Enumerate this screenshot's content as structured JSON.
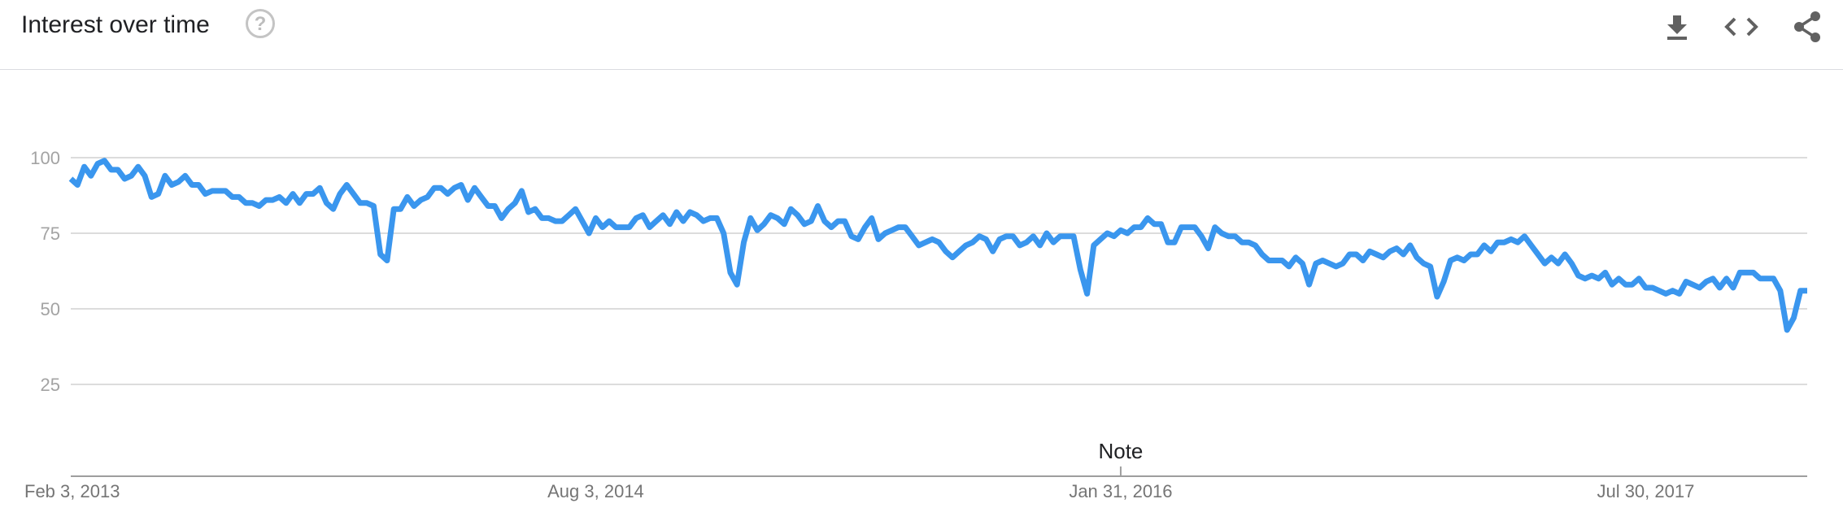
{
  "header": {
    "title": "Interest over time",
    "help_glyph": "?"
  },
  "toolbar": [
    {
      "name": "download-icon",
      "label": "download"
    },
    {
      "name": "embed-icon",
      "label": "embed"
    },
    {
      "name": "share-icon",
      "label": "share"
    }
  ],
  "colors": {
    "line": "#3a96ee",
    "grid": "#dcdcdc",
    "axis": "#9e9e9e"
  },
  "chart_data": {
    "type": "line",
    "title": "Interest over time",
    "xlabel": "",
    "ylabel": "",
    "ylim": [
      0,
      100
    ],
    "xlim": [
      "2013-02-03",
      "2018-03-11"
    ],
    "yticks": [
      25,
      50,
      75,
      100
    ],
    "xtick_labels": [
      {
        "date": "2013-02-03",
        "label": "Feb 3, 2013"
      },
      {
        "date": "2014-08-03",
        "label": "Aug 3, 2014"
      },
      {
        "date": "2016-01-31",
        "label": "Jan 31, 2016"
      },
      {
        "date": "2017-07-30",
        "label": "Jul 30, 2017"
      }
    ],
    "annotations": [
      {
        "date": "2016-01-31",
        "text": "Note"
      }
    ],
    "grid": true,
    "legend": "none",
    "start_date": "2013-02-03",
    "interval_days": 7,
    "series": [
      {
        "values": [
          93,
          91,
          97,
          94,
          98,
          99,
          96,
          96,
          93,
          94,
          97,
          94,
          87,
          88,
          94,
          91,
          92,
          94,
          91,
          91,
          88,
          89,
          89,
          89,
          87,
          87,
          85,
          85,
          84,
          86,
          86,
          87,
          85,
          88,
          85,
          88,
          88,
          90,
          85,
          83,
          88,
          91,
          88,
          85,
          85,
          84,
          68,
          66,
          83,
          83,
          87,
          84,
          86,
          87,
          90,
          90,
          88,
          90,
          91,
          86,
          90,
          87,
          84,
          84,
          80,
          83,
          85,
          89,
          82,
          83,
          80,
          80,
          79,
          79,
          81,
          83,
          79,
          75,
          80,
          77,
          79,
          77,
          77,
          77,
          80,
          81,
          77,
          79,
          81,
          78,
          82,
          79,
          82,
          81,
          79,
          80,
          80,
          75,
          62,
          58,
          72,
          80,
          76,
          78,
          81,
          80,
          78,
          83,
          81,
          78,
          79,
          84,
          79,
          77,
          79,
          79,
          74,
          73,
          77,
          80,
          73,
          75,
          76,
          77,
          77,
          74,
          71,
          72,
          73,
          72,
          69,
          67,
          69,
          71,
          72,
          74,
          73,
          69,
          73,
          74,
          74,
          71,
          72,
          74,
          71,
          75,
          72,
          74,
          74,
          74,
          63,
          55,
          71,
          73,
          75,
          74,
          76,
          75,
          77,
          77,
          80,
          78,
          78,
          72,
          72,
          77,
          77,
          77,
          74,
          70,
          77,
          75,
          74,
          74,
          72,
          72,
          71,
          68,
          66,
          66,
          66,
          64,
          67,
          65,
          58,
          65,
          66,
          65,
          64,
          65,
          68,
          68,
          66,
          69,
          68,
          67,
          69,
          70,
          68,
          71,
          67,
          65,
          64,
          54,
          59,
          66,
          67,
          66,
          68,
          68,
          71,
          69,
          72,
          72,
          73,
          72,
          74,
          71,
          68,
          65,
          67,
          65,
          68,
          65,
          61,
          60,
          61,
          60,
          62,
          58,
          60,
          58,
          58,
          60,
          57,
          57,
          56,
          55,
          56,
          55,
          59,
          58,
          57,
          59,
          60,
          57,
          60,
          57,
          62,
          62,
          62,
          60,
          60,
          60,
          56,
          43,
          47,
          56,
          56
        ]
      }
    ]
  }
}
